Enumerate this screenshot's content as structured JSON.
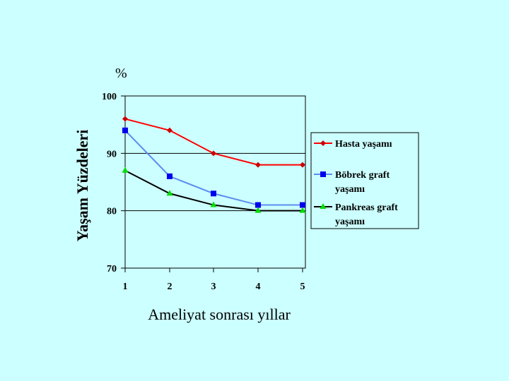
{
  "chart_data": {
    "type": "line",
    "unit_label": "%",
    "ylabel": "Yaşam  Yüzdeleri",
    "xlabel": "Ameliyat sonrası yıllar",
    "categories": [
      "1",
      "2",
      "3",
      "4",
      "5"
    ],
    "y_ticks": [
      "100",
      "90",
      "80",
      "70"
    ],
    "ylim": [
      70,
      100
    ],
    "grid": true,
    "legend_position": "right",
    "series": [
      {
        "name": "Hasta yaşamı",
        "legend_lines": [
          "Hasta yaşamı"
        ],
        "values": [
          96,
          94,
          90,
          88,
          88
        ],
        "line_color": "#ff0000",
        "marker_color": "#cc0000",
        "marker": "diamond"
      },
      {
        "name": "Böbrek graft yaşamı",
        "legend_lines": [
          "Böbrek graft",
          "yaşamı"
        ],
        "values": [
          94,
          86,
          83,
          81,
          81
        ],
        "line_color": "#5b8df0",
        "marker_color": "#0000ee",
        "marker": "square"
      },
      {
        "name": "Pankreas graft yaşamı",
        "legend_lines": [
          "Pankreas graft",
          "yaşamı"
        ],
        "values": [
          87,
          83,
          81,
          80,
          80
        ],
        "line_color": "#000000",
        "marker_color": "#00dd00",
        "marker": "triangle"
      }
    ]
  }
}
